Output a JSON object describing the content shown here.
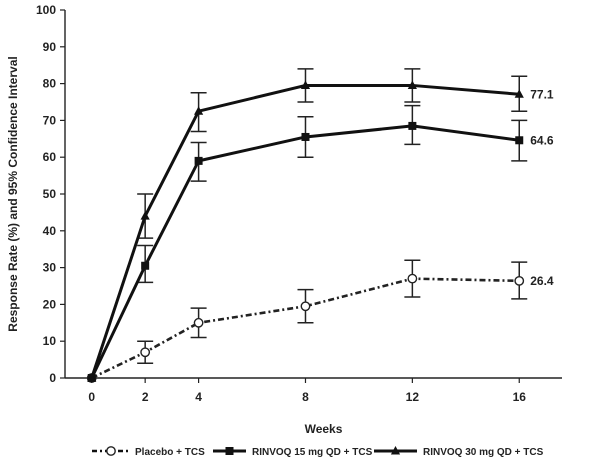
{
  "chart_data": {
    "type": "line",
    "x": [
      0,
      2,
      4,
      8,
      12,
      16
    ],
    "xticks": [
      "0",
      "2",
      "4",
      "8",
      "12",
      "16"
    ],
    "yticks": [
      "0",
      "10",
      "20",
      "30",
      "40",
      "50",
      "60",
      "70",
      "80",
      "90",
      "100"
    ],
    "xlim": [
      -1,
      17.6
    ],
    "ylim": [
      0,
      100
    ],
    "xlabel": "Weeks",
    "ylabel": "Response Rate (%) and 95% Confidence Interval",
    "grid": false,
    "legend_position": "bottom",
    "series": [
      {
        "name": "Placebo + TCS",
        "marker": "open-circle",
        "line_style": "dash-dot",
        "color": "#222222",
        "values": [
          0,
          7,
          15,
          19.5,
          27,
          26.4
        ],
        "ci_low": [
          0,
          4,
          11,
          15,
          22,
          21.5
        ],
        "ci_high": [
          0,
          10,
          19,
          24,
          32,
          31.5
        ],
        "end_label": "26.4"
      },
      {
        "name": "RINVOQ 15 mg QD + TCS",
        "marker": "filled-square",
        "line_style": "solid",
        "color": "#111111",
        "values": [
          0,
          30.5,
          59,
          65.5,
          68.5,
          64.6
        ],
        "ci_low": [
          0,
          26,
          53.5,
          60,
          63.5,
          59
        ],
        "ci_high": [
          0,
          36,
          64,
          71,
          74,
          70
        ],
        "end_label": "64.6"
      },
      {
        "name": "RINVOQ 30 mg QD + TCS",
        "marker": "filled-triangle",
        "line_style": "solid",
        "color": "#111111",
        "values": [
          0,
          44,
          72.5,
          79.5,
          79.5,
          77.1
        ],
        "ci_low": [
          0,
          38,
          67,
          75,
          75,
          72.5
        ],
        "ci_high": [
          0,
          50,
          77.5,
          84,
          84,
          82
        ],
        "end_label": "77.1"
      }
    ]
  }
}
